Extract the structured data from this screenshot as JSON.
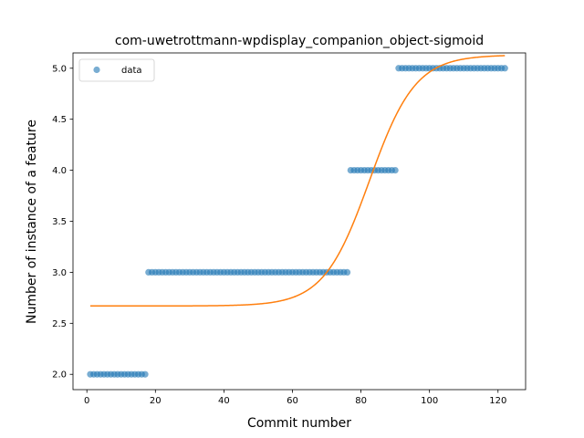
{
  "chart_data": {
    "type": "scatter",
    "title": "com-uwetrottmann-wpdisplay_companion_object-sigmoid",
    "xlabel": "Commit number",
    "ylabel": "Number of instance of a feature",
    "xlim": [
      -4.05,
      128.05
    ],
    "ylim": [
      1.85,
      5.15
    ],
    "xticks": [
      0,
      20,
      40,
      60,
      80,
      100,
      120
    ],
    "xtick_labels": [
      "0",
      "20",
      "40",
      "60",
      "80",
      "100",
      "120"
    ],
    "yticks": [
      2.0,
      2.5,
      3.0,
      3.5,
      4.0,
      4.5,
      5.0
    ],
    "ytick_labels": [
      "2.0",
      "2.5",
      "3.0",
      "3.5",
      "4.0",
      "4.5",
      "5.0"
    ],
    "grid": false,
    "legend": {
      "placement": "top-left",
      "entries": [
        "data"
      ]
    },
    "colors": {
      "data": "#1f77b4",
      "fit": "#ff7f0e"
    },
    "series": [
      {
        "name": "data",
        "kind": "scatter",
        "segments": [
          {
            "x_from": 1,
            "x_to": 17,
            "y": 2.0
          },
          {
            "x_from": 18,
            "x_to": 76,
            "y": 3.0
          },
          {
            "x_from": 77,
            "x_to": 90,
            "y": 4.0
          },
          {
            "x_from": 91,
            "x_to": 122,
            "y": 5.0
          }
        ]
      },
      {
        "kind": "line",
        "model": "sigmoid",
        "params": {
          "lower": 2.67,
          "upper": 5.13,
          "center": 82.5,
          "scale": 6.7
        },
        "x_range": [
          1,
          122
        ]
      }
    ]
  }
}
